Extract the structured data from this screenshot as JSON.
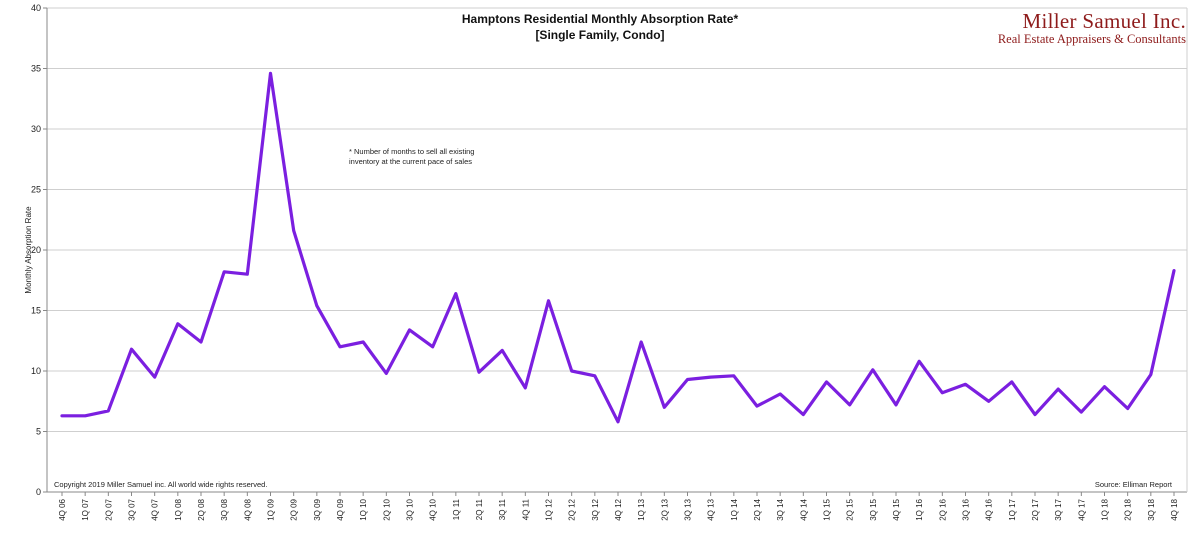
{
  "brand": {
    "name": "Miller Samuel Inc.",
    "tagline": "Real Estate Appraisers & Consultants",
    "color": "#8e1b1b"
  },
  "annotation": {
    "line1": "* Number of months to sell all existing",
    "line2": "inventory at the current pace of sales"
  },
  "footer": {
    "copyright": "Copyright 2019 Miller Samuel inc.  All world wide rights reserved.",
    "source": "Source:  Elliman Report"
  },
  "chart_data": {
    "type": "line",
    "title": "Hamptons Residential Monthly Absorption Rate*",
    "subtitle": "[Single Family, Condo]",
    "xlabel": "",
    "ylabel": "Monthly Absorption Rate",
    "ylim": [
      0,
      40
    ],
    "yticks": [
      0,
      5,
      10,
      15,
      20,
      25,
      30,
      35,
      40
    ],
    "grid": true,
    "line_color": "#7b1fe0",
    "categories": [
      "4Q 06",
      "1Q 07",
      "2Q 07",
      "3Q 07",
      "4Q 07",
      "1Q 08",
      "2Q 08",
      "3Q 08",
      "4Q 08",
      "1Q 09",
      "2Q 09",
      "3Q 09",
      "4Q 09",
      "1Q 10",
      "2Q 10",
      "3Q 10",
      "4Q 10",
      "1Q 11",
      "2Q 11",
      "3Q 11",
      "4Q 11",
      "1Q 12",
      "2Q 12",
      "3Q 12",
      "4Q 12",
      "1Q 13",
      "2Q 13",
      "3Q 13",
      "4Q 13",
      "1Q 14",
      "2Q 14",
      "3Q 14",
      "4Q 14",
      "1Q 15",
      "2Q 15",
      "3Q 15",
      "4Q 15",
      "1Q 16",
      "2Q 16",
      "3Q 16",
      "4Q 16",
      "1Q 17",
      "2Q 17",
      "3Q 17",
      "4Q 17",
      "1Q 18",
      "2Q 18",
      "3Q 18",
      "4Q 18"
    ],
    "values": [
      6.3,
      6.3,
      6.7,
      11.8,
      9.5,
      13.9,
      12.4,
      18.2,
      18.0,
      34.6,
      21.6,
      15.4,
      12.0,
      12.4,
      9.8,
      13.4,
      12.0,
      16.4,
      9.9,
      11.7,
      8.6,
      15.8,
      10.0,
      9.6,
      5.8,
      12.4,
      7.0,
      9.3,
      9.5,
      9.6,
      7.1,
      8.1,
      6.4,
      9.1,
      7.2,
      10.1,
      7.2,
      10.8,
      8.2,
      8.9,
      7.5,
      9.1,
      6.4,
      8.5,
      6.6,
      8.7,
      6.9,
      9.7,
      18.3
    ]
  }
}
